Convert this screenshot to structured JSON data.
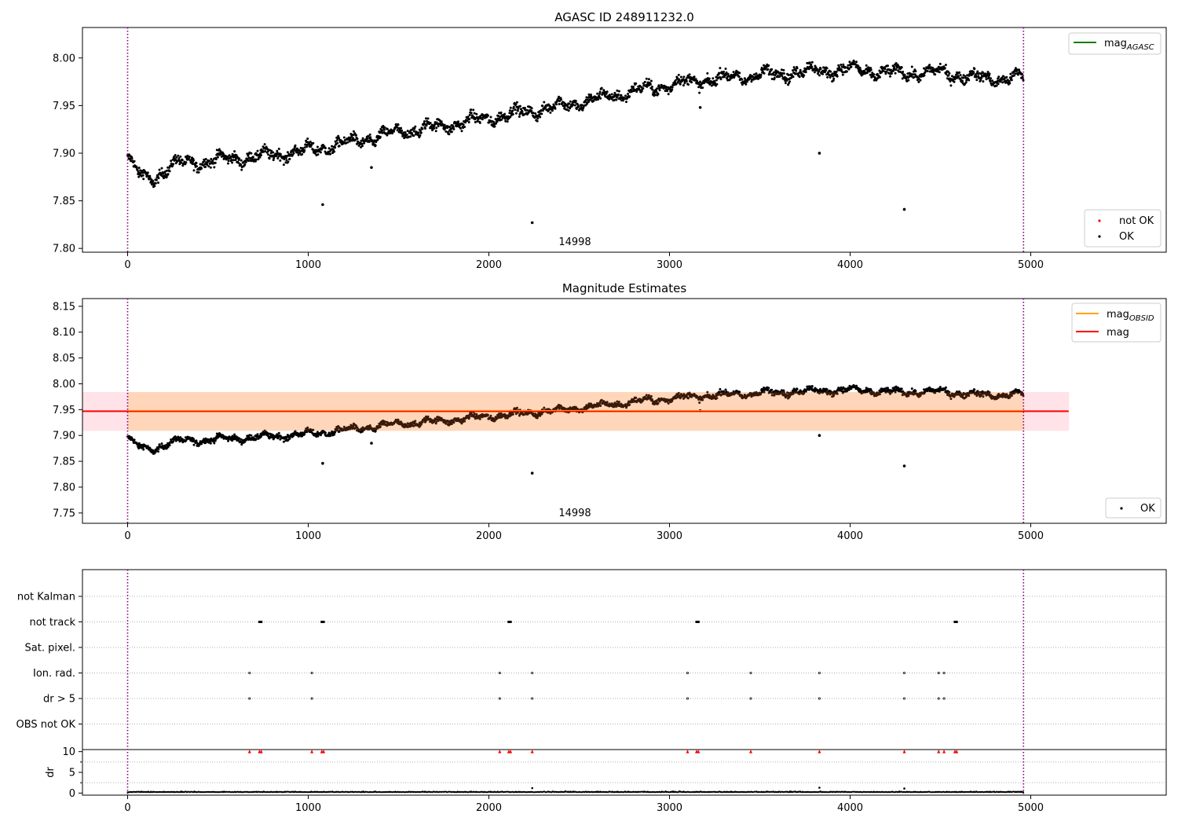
{
  "figure": {
    "title_top": "AGASC ID 248911232.0",
    "title_mid": "Magnitude Estimates",
    "obsid_label": "14998"
  },
  "chart_data": [
    {
      "type": "scatter",
      "title": "AGASC ID 248911232.0",
      "xlabel": "",
      "ylabel": "",
      "xlim": [
        -250,
        5750
      ],
      "ylim": [
        7.796,
        8.032
      ],
      "x_ticks": [
        0,
        1000,
        2000,
        3000,
        4000,
        5000
      ],
      "y_ticks": [
        7.8,
        7.85,
        7.9,
        7.95,
        8.0
      ],
      "vlines": [
        {
          "x": 0,
          "color": "#800080",
          "style": "dotted"
        },
        {
          "x": 4960,
          "color": "#800080",
          "style": "dotted"
        }
      ],
      "annotation": {
        "text": "14998",
        "x": 2480
      },
      "legend_lines": [
        {
          "label": "mag",
          "sub": "AGASC",
          "color": "#008000"
        }
      ],
      "legend_points": [
        {
          "label": "not OK",
          "color": "#ff0000"
        },
        {
          "label": "OK",
          "color": "#000000"
        }
      ],
      "legend_lines_loc": "upper right",
      "legend_points_loc": "lower right",
      "trend": [
        [
          0,
          7.895
        ],
        [
          60,
          7.878
        ],
        [
          130,
          7.872
        ],
        [
          250,
          7.888
        ],
        [
          500,
          7.893
        ],
        [
          750,
          7.897
        ],
        [
          1000,
          7.903
        ],
        [
          1250,
          7.912
        ],
        [
          1500,
          7.922
        ],
        [
          1750,
          7.929
        ],
        [
          2000,
          7.937
        ],
        [
          2250,
          7.945
        ],
        [
          2500,
          7.953
        ],
        [
          2750,
          7.963
        ],
        [
          3000,
          7.972
        ],
        [
          3250,
          7.978
        ],
        [
          3500,
          7.982
        ],
        [
          3750,
          7.986
        ],
        [
          4000,
          7.988
        ],
        [
          4250,
          7.984
        ],
        [
          4500,
          7.985
        ],
        [
          4750,
          7.978
        ],
        [
          4960,
          7.98
        ]
      ],
      "outliers": [
        [
          1080,
          7.846
        ],
        [
          1350,
          7.885
        ],
        [
          2240,
          7.827
        ],
        [
          3170,
          7.948
        ],
        [
          3830,
          7.9
        ],
        [
          4300,
          7.841
        ]
      ],
      "x_max": 4960
    },
    {
      "type": "scatter",
      "title": "Magnitude Estimates",
      "xlabel": "",
      "ylabel": "",
      "xlim": [
        -250,
        5750
      ],
      "ylim": [
        7.73,
        8.165
      ],
      "x_ticks": [
        0,
        1000,
        2000,
        3000,
        4000,
        5000
      ],
      "y_ticks": [
        7.75,
        7.8,
        7.85,
        7.9,
        7.95,
        8.0,
        8.05,
        8.1,
        8.15
      ],
      "vlines": [
        {
          "x": 0,
          "color": "#800080",
          "style": "dotted"
        },
        {
          "x": 4960,
          "color": "#800080",
          "style": "dotted"
        }
      ],
      "annotation": {
        "text": "14998",
        "x": 2480
      },
      "mag": 7.947,
      "mag_band": [
        7.909,
        7.984
      ],
      "mag_band_x": [
        -250,
        5210
      ],
      "obsid_band_x": [
        0,
        4960
      ],
      "legend_lines": [
        {
          "label": "mag",
          "sub": "OBSID",
          "color": "#ffa500"
        },
        {
          "label": "mag",
          "sub": "",
          "color": "#ff0000"
        }
      ],
      "legend_points": [
        {
          "label": "OK",
          "color": "#000000"
        }
      ],
      "legend_lines_loc": "upper right",
      "legend_points_loc": "lower right",
      "trend": [
        [
          0,
          7.895
        ],
        [
          60,
          7.878
        ],
        [
          130,
          7.872
        ],
        [
          250,
          7.888
        ],
        [
          500,
          7.893
        ],
        [
          750,
          7.897
        ],
        [
          1000,
          7.903
        ],
        [
          1250,
          7.912
        ],
        [
          1500,
          7.922
        ],
        [
          1750,
          7.929
        ],
        [
          2000,
          7.937
        ],
        [
          2250,
          7.945
        ],
        [
          2500,
          7.953
        ],
        [
          2750,
          7.963
        ],
        [
          3000,
          7.972
        ],
        [
          3250,
          7.978
        ],
        [
          3500,
          7.982
        ],
        [
          3750,
          7.986
        ],
        [
          4000,
          7.988
        ],
        [
          4250,
          7.984
        ],
        [
          4500,
          7.985
        ],
        [
          4750,
          7.978
        ],
        [
          4960,
          7.98
        ]
      ],
      "outliers": [
        [
          1080,
          7.846
        ],
        [
          1350,
          7.885
        ],
        [
          2240,
          7.827
        ],
        [
          3170,
          7.948
        ],
        [
          3830,
          7.9
        ],
        [
          4300,
          7.841
        ]
      ],
      "x_max": 4960
    },
    {
      "type": "scatter",
      "title": "",
      "categories": [
        "not Kalman",
        "not track",
        "Sat. pixel.",
        "Ion. rad.",
        "dr > 5",
        "OBS not OK"
      ],
      "xlim": [
        -250,
        5750
      ],
      "vlines": [
        {
          "x": 0,
          "color": "#800080",
          "style": "dotted"
        },
        {
          "x": 4960,
          "color": "#800080",
          "style": "dotted"
        }
      ],
      "flags": {
        "not track": [
          730,
          735,
          740,
          1075,
          1080,
          1085,
          2110,
          2115,
          2120,
          3150,
          3155,
          3160,
          4580,
          4585,
          4590
        ],
        "Ion. rad.": [
          675,
          1020,
          2060,
          2240,
          3100,
          3450,
          3830,
          4300,
          4490,
          4520
        ],
        "dr > 5": [
          675,
          1020,
          2060,
          2240,
          3100,
          3450,
          3830,
          4300,
          4490,
          4520
        ]
      }
    },
    {
      "type": "scatter",
      "title": "",
      "xlabel": "",
      "ylabel": "dr",
      "xlim": [
        -250,
        5750
      ],
      "ylim": [
        -0.5,
        10.5
      ],
      "x_ticks": [
        0,
        1000,
        2000,
        3000,
        4000,
        5000
      ],
      "y_ticks": [
        0,
        5,
        10
      ],
      "clipped_at": 10,
      "clipped_x": [
        675,
        730,
        740,
        1020,
        1075,
        1085,
        2060,
        2110,
        2120,
        2240,
        3100,
        3150,
        3160,
        3450,
        3830,
        4300,
        4490,
        4520,
        4580,
        4590
      ],
      "small_outliers": [
        [
          2240,
          1.2
        ],
        [
          3830,
          1.3
        ],
        [
          4300,
          1.1
        ]
      ],
      "baseline": 0.2
    }
  ]
}
